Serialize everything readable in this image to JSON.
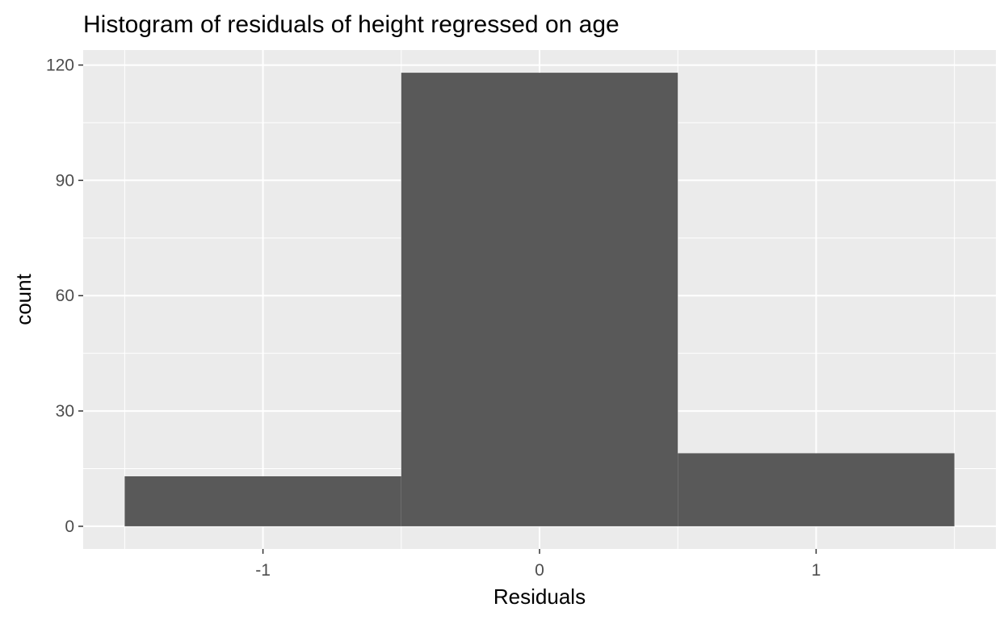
{
  "chart_data": {
    "type": "bar",
    "title": "Histogram of residuals of height regressed on age",
    "xlabel": "Residuals",
    "ylabel": "count",
    "bins": [
      {
        "x_min": -1.5,
        "x_max": -0.5,
        "count": 13
      },
      {
        "x_min": -0.5,
        "x_max": 0.5,
        "count": 118
      },
      {
        "x_min": 0.5,
        "x_max": 1.5,
        "count": 19
      }
    ],
    "x_ticks": [
      {
        "value": -1,
        "label": "-1"
      },
      {
        "value": 0,
        "label": "0"
      },
      {
        "value": 1,
        "label": "1"
      }
    ],
    "y_ticks": [
      {
        "value": 0,
        "label": "0"
      },
      {
        "value": 30,
        "label": "30"
      },
      {
        "value": 60,
        "label": "60"
      },
      {
        "value": 90,
        "label": "90"
      },
      {
        "value": 120,
        "label": "120"
      }
    ],
    "xlim": [
      -1.65,
      1.65
    ],
    "ylim": [
      -5.9,
      123.9
    ],
    "grid": true,
    "colors": {
      "bar_fill": "#595959",
      "panel_background": "#ebebeb",
      "grid_line": "#ffffff",
      "tick_label": "#4d4d4d"
    }
  }
}
